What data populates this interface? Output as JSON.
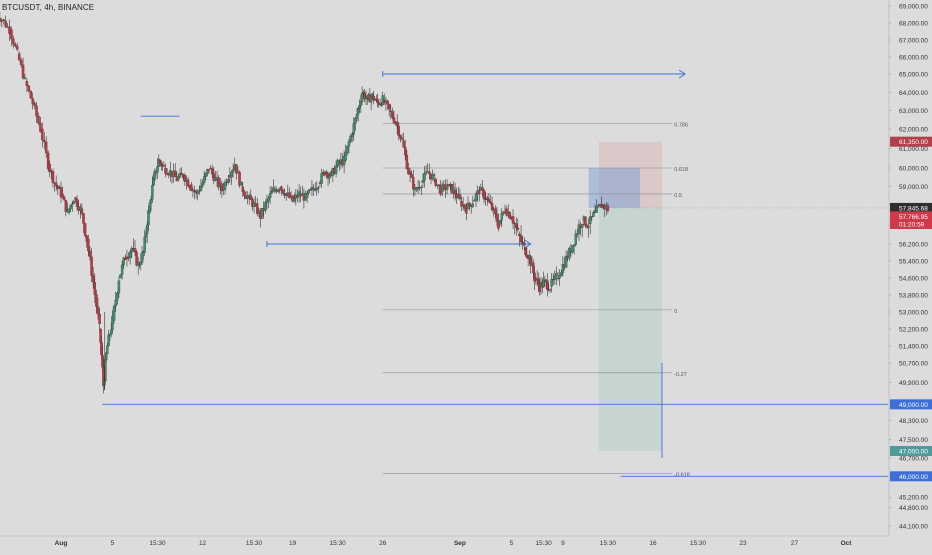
{
  "header": {
    "symbol_label": "BTCUSDT, 4h, BINANCE"
  },
  "chart_data": {
    "type": "candlestick",
    "symbol": "BTCUSDT",
    "interval": "4h",
    "exchange": "BINANCE",
    "ylim": [
      43800,
      69600
    ],
    "price_ticks": [
      "69,000.00",
      "68,000.00",
      "67,000.00",
      "66,000.00",
      "65,000.00",
      "64,000.00",
      "63,000.00",
      "62,000.00",
      "61,000.00",
      "60,000.00",
      "59,000.00",
      "58,000.00",
      "57,000.00",
      "56,200.00",
      "55,400.00",
      "54,600.00",
      "53,800.00",
      "53,000.00",
      "52,200.00",
      "51,400.00",
      "50,700.00",
      "49,900.00",
      "49,100.00",
      "48,300.00",
      "47,500.00",
      "46,700.00",
      "46,000.00",
      "45,200.00",
      "44,800.00",
      "44,100.00"
    ],
    "price_tick_values": [
      69000,
      68000,
      67000,
      66000,
      65000,
      64000,
      63000,
      62000,
      61000,
      60000,
      59000,
      58000,
      57000,
      56200,
      55400,
      54600,
      53800,
      53000,
      52200,
      51400,
      50700,
      49900,
      49100,
      48300,
      47500,
      46700,
      46000,
      45200,
      44800,
      44100
    ],
    "time_ticks": [
      {
        "label": "Aug",
        "day": 0
      },
      {
        "label": "5",
        "day": 4
      },
      {
        "label": "15:30",
        "day": 7.5
      },
      {
        "label": "12",
        "day": 11
      },
      {
        "label": "15:30",
        "day": 15
      },
      {
        "label": "19",
        "day": 18
      },
      {
        "label": "15:30",
        "day": 21.5
      },
      {
        "label": "26",
        "day": 25
      },
      {
        "label": "Sep",
        "day": 31
      },
      {
        "label": "5",
        "day": 35
      },
      {
        "label": "15:30",
        "day": 37.5
      },
      {
        "label": "9",
        "day": 39
      },
      {
        "label": "15:30",
        "day": 42.5
      },
      {
        "label": "16",
        "day": 46
      },
      {
        "label": "15:30",
        "day": 49.5
      },
      {
        "label": "23",
        "day": 53
      },
      {
        "label": "27",
        "day": 57
      },
      {
        "label": "Oct",
        "day": 61
      }
    ],
    "close_path": [
      [
        -5.2,
        68600
      ],
      [
        -4.6,
        68200
      ],
      [
        -4.0,
        67600
      ],
      [
        -3.4,
        66200
      ],
      [
        -2.8,
        64600
      ],
      [
        -2.2,
        63400
      ],
      [
        -1.6,
        62000
      ],
      [
        -1.0,
        60200
      ],
      [
        -0.5,
        59200
      ],
      [
        0.0,
        58600
      ],
      [
        0.5,
        57600
      ],
      [
        1.0,
        58400
      ],
      [
        1.5,
        57800
      ],
      [
        2.0,
        56400
      ],
      [
        2.5,
        54400
      ],
      [
        3.0,
        52200
      ],
      [
        3.3,
        49800
      ],
      [
        3.6,
        51400
      ],
      [
        4.0,
        52600
      ],
      [
        4.5,
        54600
      ],
      [
        5.0,
        55600
      ],
      [
        5.5,
        56000
      ],
      [
        6.0,
        55200
      ],
      [
        6.4,
        55800
      ],
      [
        6.8,
        57600
      ],
      [
        7.2,
        59400
      ],
      [
        7.6,
        60400
      ],
      [
        8.0,
        60000
      ],
      [
        8.5,
        59800
      ],
      [
        9.0,
        59400
      ],
      [
        9.5,
        59600
      ],
      [
        10.0,
        59100
      ],
      [
        10.5,
        58600
      ],
      [
        11.0,
        59200
      ],
      [
        11.5,
        60000
      ],
      [
        12.0,
        59400
      ],
      [
        12.5,
        58800
      ],
      [
        13.0,
        59600
      ],
      [
        13.5,
        60200
      ],
      [
        14.0,
        59000
      ],
      [
        14.5,
        58400
      ],
      [
        15.0,
        58000
      ],
      [
        15.5,
        57400
      ],
      [
        16.0,
        58200
      ],
      [
        16.5,
        58800
      ],
      [
        17.0,
        59000
      ],
      [
        17.5,
        58600
      ],
      [
        18.0,
        58200
      ],
      [
        18.5,
        58600
      ],
      [
        19.0,
        58400
      ],
      [
        19.5,
        58800
      ],
      [
        20.0,
        59200
      ],
      [
        20.5,
        59800
      ],
      [
        21.0,
        59600
      ],
      [
        21.5,
        60200
      ],
      [
        22.0,
        60400
      ],
      [
        22.5,
        61600
      ],
      [
        23.0,
        62800
      ],
      [
        23.4,
        64000
      ],
      [
        23.8,
        63600
      ],
      [
        24.2,
        63800
      ],
      [
        24.6,
        63400
      ],
      [
        25.0,
        63600
      ],
      [
        25.5,
        63000
      ],
      [
        26.0,
        62400
      ],
      [
        26.5,
        61400
      ],
      [
        27.0,
        59800
      ],
      [
        27.5,
        58800
      ],
      [
        28.0,
        59200
      ],
      [
        28.5,
        59800
      ],
      [
        29.0,
        59400
      ],
      [
        29.5,
        58800
      ],
      [
        30.0,
        59000
      ],
      [
        30.5,
        58800
      ],
      [
        31.0,
        58200
      ],
      [
        31.5,
        57800
      ],
      [
        32.0,
        58200
      ],
      [
        32.5,
        58800
      ],
      [
        33.0,
        58400
      ],
      [
        33.5,
        57800
      ],
      [
        34.0,
        57000
      ],
      [
        34.5,
        57800
      ],
      [
        35.0,
        57400
      ],
      [
        35.5,
        56600
      ],
      [
        36.0,
        56000
      ],
      [
        36.4,
        55600
      ],
      [
        36.8,
        54600
      ],
      [
        37.2,
        54200
      ],
      [
        37.6,
        54400
      ],
      [
        38.0,
        54200
      ],
      [
        38.5,
        54600
      ],
      [
        39.0,
        55200
      ],
      [
        39.5,
        55800
      ],
      [
        40.0,
        56600
      ],
      [
        40.5,
        57200
      ],
      [
        41.0,
        57000
      ],
      [
        41.5,
        57600
      ],
      [
        42.0,
        58000
      ],
      [
        42.5,
        57800
      ]
    ],
    "last_price": 57766.95,
    "countdown": "01:20:59",
    "horizontal_levels": [
      {
        "name": "level-65000",
        "price": 65000,
        "from_day": 25.0,
        "to_day": 48.5,
        "color": "#3d6fd6",
        "arrow": true
      },
      {
        "name": "level-62700",
        "price": 62700,
        "from_day": 6.2,
        "to_day": 9.2,
        "color": "#3d6fd6",
        "arrow": false
      },
      {
        "name": "level-56200",
        "price": 56200,
        "from_day": 16.0,
        "to_day": 36.5,
        "color": "#3d6fd6",
        "arrow": true
      },
      {
        "name": "level-49000",
        "price": 49000,
        "from_day": 3.2,
        "to_day": 68,
        "color": "#3d6fd6",
        "arrow": false
      },
      {
        "name": "level-46000",
        "price": 46000,
        "from_day": 43.5,
        "to_day": 68,
        "color": "#3d6fd6",
        "arrow": false
      }
    ],
    "fibonacci": {
      "from_day": 25.0,
      "to_day": 47.5,
      "levels": [
        {
          "label": "0.786",
          "price": 62300
        },
        {
          "label": "0.618",
          "price": 60000
        },
        {
          "label": "0.5",
          "price": 58600
        },
        {
          "label": "0",
          "price": 53100
        },
        {
          "label": "-0.27",
          "price": 50300
        },
        {
          "label": "-0.618",
          "price": 46100
        }
      ]
    },
    "position": {
      "from_day": 41.8,
      "to_day": 46.7,
      "entry": 57846,
      "stop": 61350,
      "target": 47000,
      "entry_box_top": 60000,
      "entry_box_to_day": 45.0
    },
    "price_labels": [
      {
        "text": "61,350.00",
        "price": 61350,
        "bg": "#b0404a"
      },
      {
        "text": "57,845.68",
        "price": 57846,
        "bg": "#2e2e2e"
      },
      {
        "text": "57,766.95",
        "price": 57400,
        "bg": "#d0394a"
      },
      {
        "text": "01:20:59",
        "price": 57000,
        "bg": "#d0394a"
      },
      {
        "text": "49,000.00",
        "price": 49000,
        "bg": "#3d6fd6"
      },
      {
        "text": "47,000.00",
        "price": 47000,
        "bg": "#4f9a9a"
      },
      {
        "text": "46,000.00",
        "price": 46000,
        "bg": "#3d6fd6"
      }
    ]
  }
}
